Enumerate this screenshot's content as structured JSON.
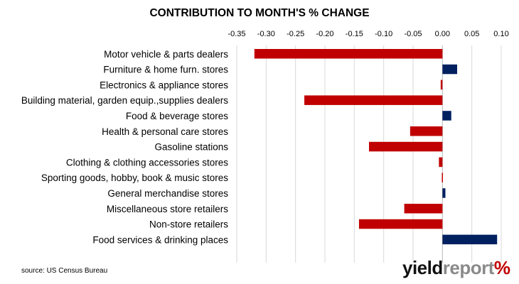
{
  "chart_data": {
    "type": "bar",
    "orientation": "horizontal",
    "title": "CONTRIBUTION TO MONTH'S % CHANGE",
    "categories": [
      "Motor vehicle & parts dealers",
      "Furniture & home furn. stores",
      "Electronics & appliance stores",
      "Building material, garden equip.,supplies dealers",
      "Food & beverage stores",
      "Health & personal care stores",
      "Gasoline stations",
      "Clothing & clothing accessories stores",
      "Sporting goods, hobby, book & music stores",
      "General merchandise stores",
      "Miscellaneous store retailers",
      "Non-store retailers",
      "Food services & drinking places"
    ],
    "values": [
      -0.32,
      0.025,
      -0.003,
      -0.235,
      0.015,
      -0.055,
      -0.125,
      -0.006,
      -0.001,
      0.005,
      -0.065,
      -0.142,
      0.093
    ],
    "xlim": [
      -0.35,
      0.1
    ],
    "xticks": [
      "-0.35",
      "-0.30",
      "-0.25",
      "-0.20",
      "-0.15",
      "-0.10",
      "-0.05",
      "0.00",
      "0.05",
      "0.10"
    ],
    "xtick_values": [
      -0.35,
      -0.3,
      -0.25,
      -0.2,
      -0.15,
      -0.1,
      -0.05,
      0.0,
      0.05,
      0.1
    ],
    "axis_position": "top",
    "grid": true,
    "legend": "none",
    "colors": {
      "negative": "#c00000",
      "positive": "#002060",
      "grid": "#d9d9d9",
      "axis": "#bfbfbf"
    }
  },
  "footer": {
    "source": "source: US Census Bureau",
    "brand_yield": "yield",
    "brand_report": "report",
    "brand_pct": "%"
  }
}
